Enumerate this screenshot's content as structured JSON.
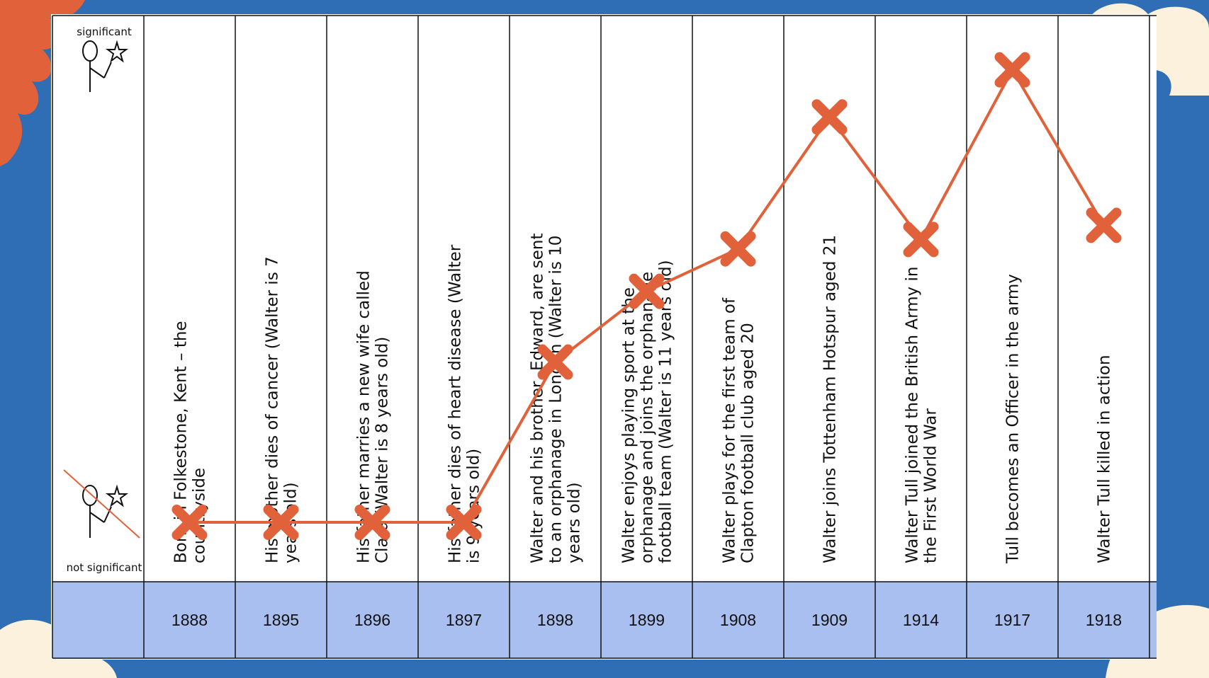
{
  "colors": {
    "background": "#2f6db5",
    "frame": "#ffffff",
    "year_band": "#a9bff0",
    "line": "#e0613a",
    "marker": "#e0613a",
    "leaf": "#e0613a",
    "cloud": "#fbf1dc"
  },
  "chart_data": {
    "type": "line",
    "title": "",
    "xlabel": "",
    "ylabel": "",
    "y_axis": {
      "top_label": "significant",
      "bottom_label": "not significant",
      "top_icon": "figure-with-star-icon",
      "bottom_icon": "crossed-out-figure-with-star-icon"
    },
    "ylim": [
      0,
      10
    ],
    "grid": false,
    "legend": "none",
    "marker": "x",
    "categories": [
      "1888",
      "1895",
      "1896",
      "1897",
      "1898",
      "1899",
      "1908",
      "1909",
      "1914",
      "1917",
      "1918"
    ],
    "events": [
      "Born in Folkestone, Kent – the countryside",
      "His mother dies of cancer (Walter is 7 years old)",
      "His father marries a new wife called Clara (Walter is 8 years old)",
      "His father dies of heart disease (Walter is 9 years old)",
      "Walter and his brother, Edward, are sent to an orphanage in London (Walter is 10 years old)",
      "Walter enjoys playing sport at the orphanage and joins the orphanage football team (Walter is 11 years old)",
      "Walter plays for the first team of Clapton football club aged 20",
      "Walter joins Tottenham Hotspur aged 21",
      "Walter Tull joined the British Army in the First World War",
      "Tull becomes an Officer in the army",
      "Walter Tull killed in action"
    ],
    "series": [
      {
        "name": "Significance",
        "values": [
          0,
          0,
          0,
          0,
          3.4,
          4.9,
          5.8,
          8.6,
          6.0,
          9.6,
          6.3
        ]
      }
    ]
  }
}
